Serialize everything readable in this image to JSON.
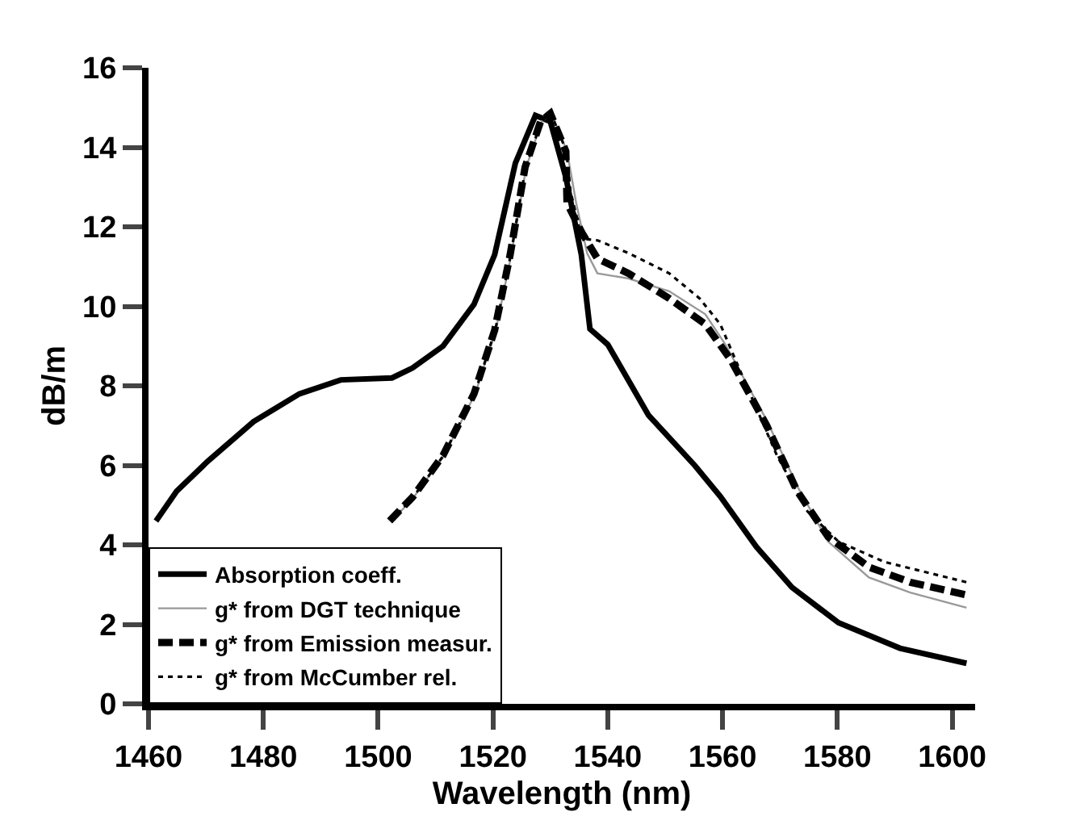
{
  "chart_data": {
    "type": "line",
    "xlabel": "Wavelength (nm)",
    "ylabel": "dB/m",
    "xlim": [
      1460,
      1604
    ],
    "xticks": [
      1460,
      1480,
      1500,
      1520,
      1540,
      1560,
      1580,
      1600
    ],
    "ylim": [
      0,
      16
    ],
    "yticks": [
      0,
      2,
      4,
      6,
      8,
      10,
      12,
      14,
      16
    ],
    "grid": false,
    "legend": "bottom left",
    "marker": "none",
    "series": [
      {
        "name": "Absorption coeff.",
        "color": "#000000",
        "line_style": "solid",
        "x": [
          1461.3,
          1464.9,
          1470.3,
          1478.3,
          1486.3,
          1493.5,
          1502.4,
          1506,
          1511.3,
          1516.7,
          1520.3,
          1523.9,
          1527.4,
          1530,
          1532.7,
          1535.4,
          1536.9,
          1540,
          1547.1,
          1555.2,
          1559.6,
          1565.9,
          1572.1,
          1580.2,
          1590.9,
          1602.5
        ],
        "values": [
          4.6,
          5.35,
          6.1,
          7.1,
          7.8,
          8.15,
          8.2,
          8.45,
          9.0,
          10.05,
          11.3,
          13.6,
          14.8,
          14.65,
          13.25,
          11.3,
          9.43,
          9.04,
          7.26,
          5.99,
          5.22,
          3.95,
          2.93,
          2.04,
          1.4,
          1.02
        ]
      },
      {
        "name": "g* from DGT technique",
        "color": "#999999",
        "line_style": "solid",
        "x": [
          1502.4,
          1506.2,
          1511.5,
          1516.9,
          1520.5,
          1523.2,
          1525.8,
          1528.5,
          1530.2,
          1532.9,
          1534.5,
          1536.4,
          1538.2,
          1543.6,
          1550.7,
          1557,
          1560.5,
          1567.7,
          1573,
          1578.4,
          1585.5,
          1592.7,
          1602.5
        ],
        "values": [
          4.6,
          5.2,
          6.25,
          7.8,
          9.4,
          11.3,
          13.5,
          14.65,
          14.85,
          13.9,
          12.6,
          11.34,
          10.83,
          10.7,
          10.38,
          9.8,
          9.04,
          7.13,
          5.48,
          4.08,
          3.18,
          2.8,
          2.42
        ]
      },
      {
        "name": "g* from Emission measur.",
        "color": "#000000",
        "line_style": "dashed",
        "x": [
          1502,
          1506,
          1511.3,
          1516.7,
          1520.3,
          1523,
          1525.6,
          1528.3,
          1530,
          1532.7,
          1532.9,
          1535.5,
          1538.2,
          1543.6,
          1550.7,
          1557,
          1561.4,
          1567.7,
          1573,
          1578.4,
          1585.5,
          1592.7,
          1602.5
        ],
        "values": [
          4.6,
          5.2,
          6.25,
          7.8,
          9.4,
          11.3,
          13.5,
          14.65,
          14.85,
          13.9,
          12.6,
          11.85,
          11.2,
          10.83,
          10.2,
          9.55,
          8.66,
          7.0,
          5.35,
          4.2,
          3.44,
          3.06,
          2.74
        ]
      },
      {
        "name": "g* from McCumber rel.",
        "color": "#000000",
        "line_style": "dotted",
        "x": [
          1502.2,
          1506.1,
          1511.4,
          1516.8,
          1520.4,
          1523.1,
          1525.7,
          1528.4,
          1530.1,
          1532.8,
          1533.5,
          1535.5,
          1538.2,
          1543.6,
          1550.7,
          1556,
          1559.6,
          1564.1,
          1569.5,
          1574.8,
          1580.2,
          1588.2,
          1602.5
        ],
        "values": [
          4.6,
          5.2,
          6.25,
          7.8,
          9.4,
          11.3,
          13.5,
          14.65,
          14.85,
          13.9,
          12.9,
          11.7,
          11.66,
          11.34,
          10.83,
          10.2,
          9.55,
          8.03,
          6.24,
          4.84,
          4.08,
          3.57,
          3.06
        ]
      }
    ]
  }
}
